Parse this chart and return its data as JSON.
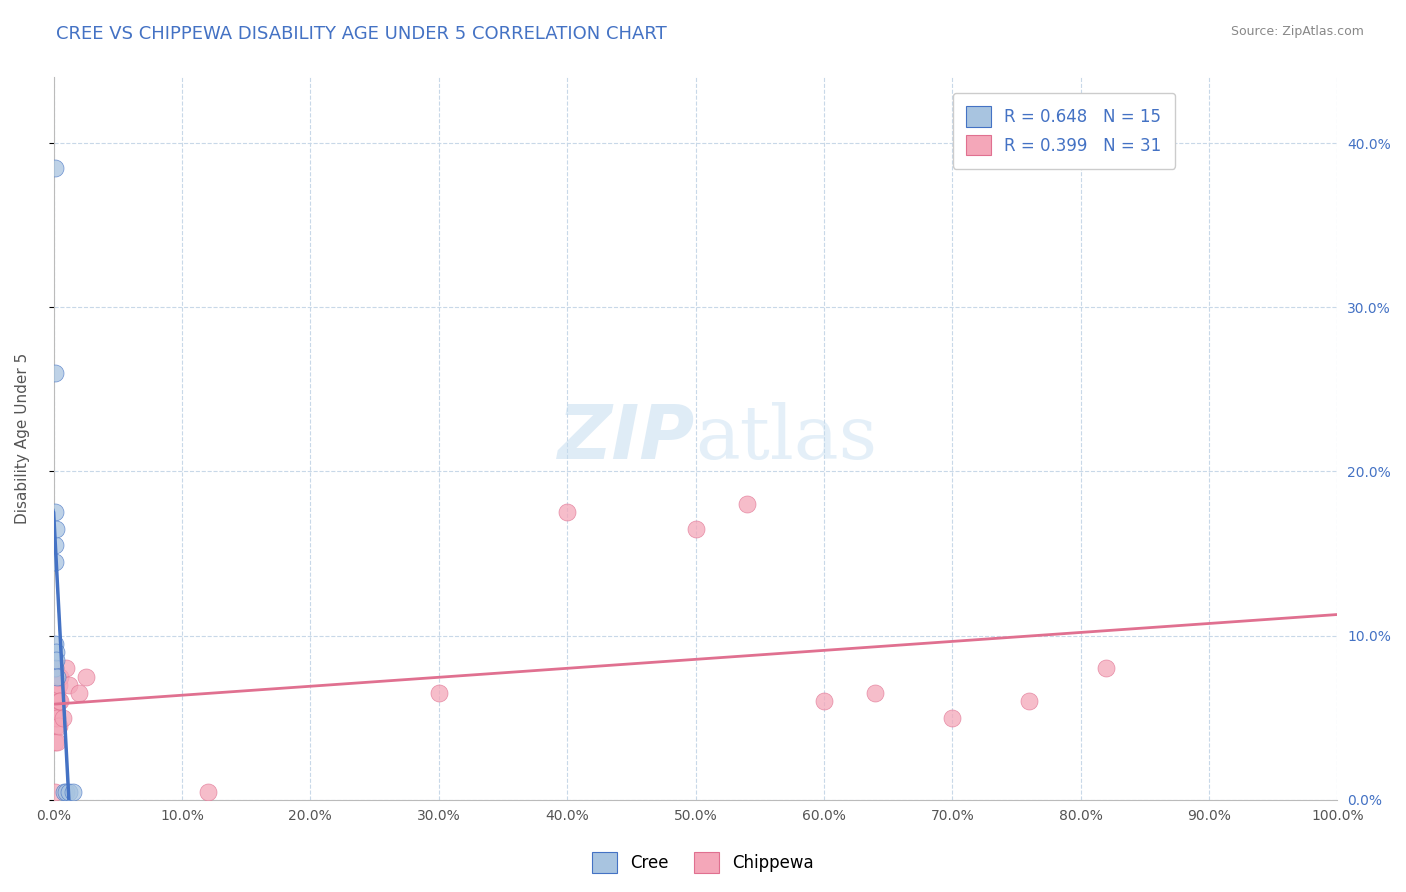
{
  "title": "CREE VS CHIPPEWA DISABILITY AGE UNDER 5 CORRELATION CHART",
  "source": "Source: ZipAtlas.com",
  "ylabel": "Disability Age Under 5",
  "xlim": [
    0.0,
    1.0
  ],
  "ylim": [
    0.0,
    0.44
  ],
  "xticks": [
    0.0,
    0.1,
    0.2,
    0.3,
    0.4,
    0.5,
    0.6,
    0.7,
    0.8,
    0.9,
    1.0
  ],
  "yticks": [
    0.0,
    0.1,
    0.2,
    0.3,
    0.4
  ],
  "xtick_labels": [
    "0.0%",
    "10.0%",
    "20.0%",
    "30.0%",
    "40.0%",
    "50.0%",
    "60.0%",
    "70.0%",
    "80.0%",
    "90.0%",
    "100.0%"
  ],
  "ytick_labels_right": [
    "0.0%",
    "10.0%",
    "20.0%",
    "30.0%",
    "40.0%"
  ],
  "cree_color": "#a8c4e0",
  "chippewa_color": "#f4a7b9",
  "cree_line_color": "#4472c4",
  "chippewa_line_color": "#e07090",
  "legend_R_N_color": "#4472c4",
  "background_color": "#ffffff",
  "grid_color": "#c8d8e8",
  "cree_R": 0.648,
  "cree_N": 15,
  "chippewa_R": 0.399,
  "chippewa_N": 31,
  "cree_x": [
    0.001,
    0.001,
    0.001,
    0.001,
    0.001,
    0.001,
    0.001,
    0.002,
    0.002,
    0.002,
    0.003,
    0.008,
    0.01,
    0.012,
    0.015
  ],
  "cree_y": [
    0.385,
    0.26,
    0.175,
    0.155,
    0.145,
    0.095,
    0.08,
    0.165,
    0.09,
    0.085,
    0.075,
    0.005,
    0.005,
    0.005,
    0.005
  ],
  "chippewa_x": [
    0.001,
    0.001,
    0.001,
    0.001,
    0.001,
    0.002,
    0.002,
    0.002,
    0.003,
    0.003,
    0.003,
    0.004,
    0.004,
    0.004,
    0.005,
    0.005,
    0.007,
    0.01,
    0.012,
    0.02,
    0.025,
    0.12,
    0.3,
    0.4,
    0.5,
    0.54,
    0.6,
    0.64,
    0.7,
    0.76,
    0.82
  ],
  "chippewa_y": [
    0.08,
    0.06,
    0.05,
    0.035,
    0.005,
    0.07,
    0.055,
    0.045,
    0.065,
    0.05,
    0.035,
    0.07,
    0.06,
    0.045,
    0.075,
    0.06,
    0.05,
    0.08,
    0.07,
    0.065,
    0.075,
    0.005,
    0.065,
    0.175,
    0.165,
    0.18,
    0.06,
    0.065,
    0.05,
    0.06,
    0.08
  ]
}
